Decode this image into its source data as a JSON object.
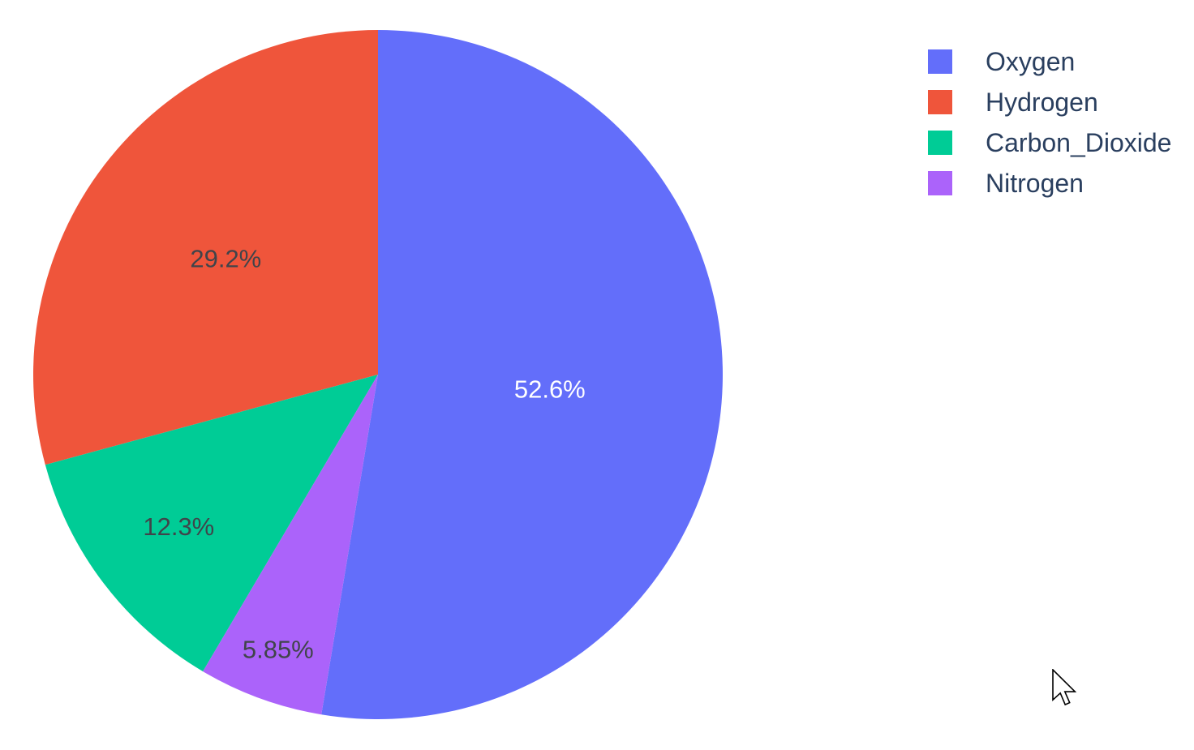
{
  "window": {
    "background_color": "#ffffff"
  },
  "chart_data": {
    "type": "pie",
    "title": "",
    "labels": [
      "Oxygen",
      "Hydrogen",
      "Carbon_Dioxide",
      "Nitrogen"
    ],
    "values": [
      52.6,
      29.2,
      12.3,
      5.85
    ],
    "percent_labels": [
      "52.6%",
      "29.2%",
      "12.3%",
      "5.85%"
    ],
    "slice_colors": [
      "#636efa",
      "#ef553b",
      "#00cc96",
      "#ab63fa"
    ],
    "percent_label_colors": [
      "#ffffff",
      "#40444a",
      "#40444a",
      "#40444a"
    ],
    "label_radius_frac": [
      0.5,
      0.556,
      0.727,
      0.848
    ],
    "start_position": "top",
    "first_slice_direction": "clockwise",
    "remaining_slices_direction": "counterclockwise",
    "legend_position": "top-right",
    "grid": "off"
  },
  "legend": {
    "text_color": "#2a3f5f",
    "items": [
      {
        "label": "Oxygen",
        "color": "#636efa"
      },
      {
        "label": "Hydrogen",
        "color": "#ef553b"
      },
      {
        "label": "Carbon_Dioxide",
        "color": "#00cc96"
      },
      {
        "label": "Nitrogen",
        "color": "#ab63fa"
      }
    ]
  },
  "cursor": {
    "type": "arrow-pointer"
  }
}
